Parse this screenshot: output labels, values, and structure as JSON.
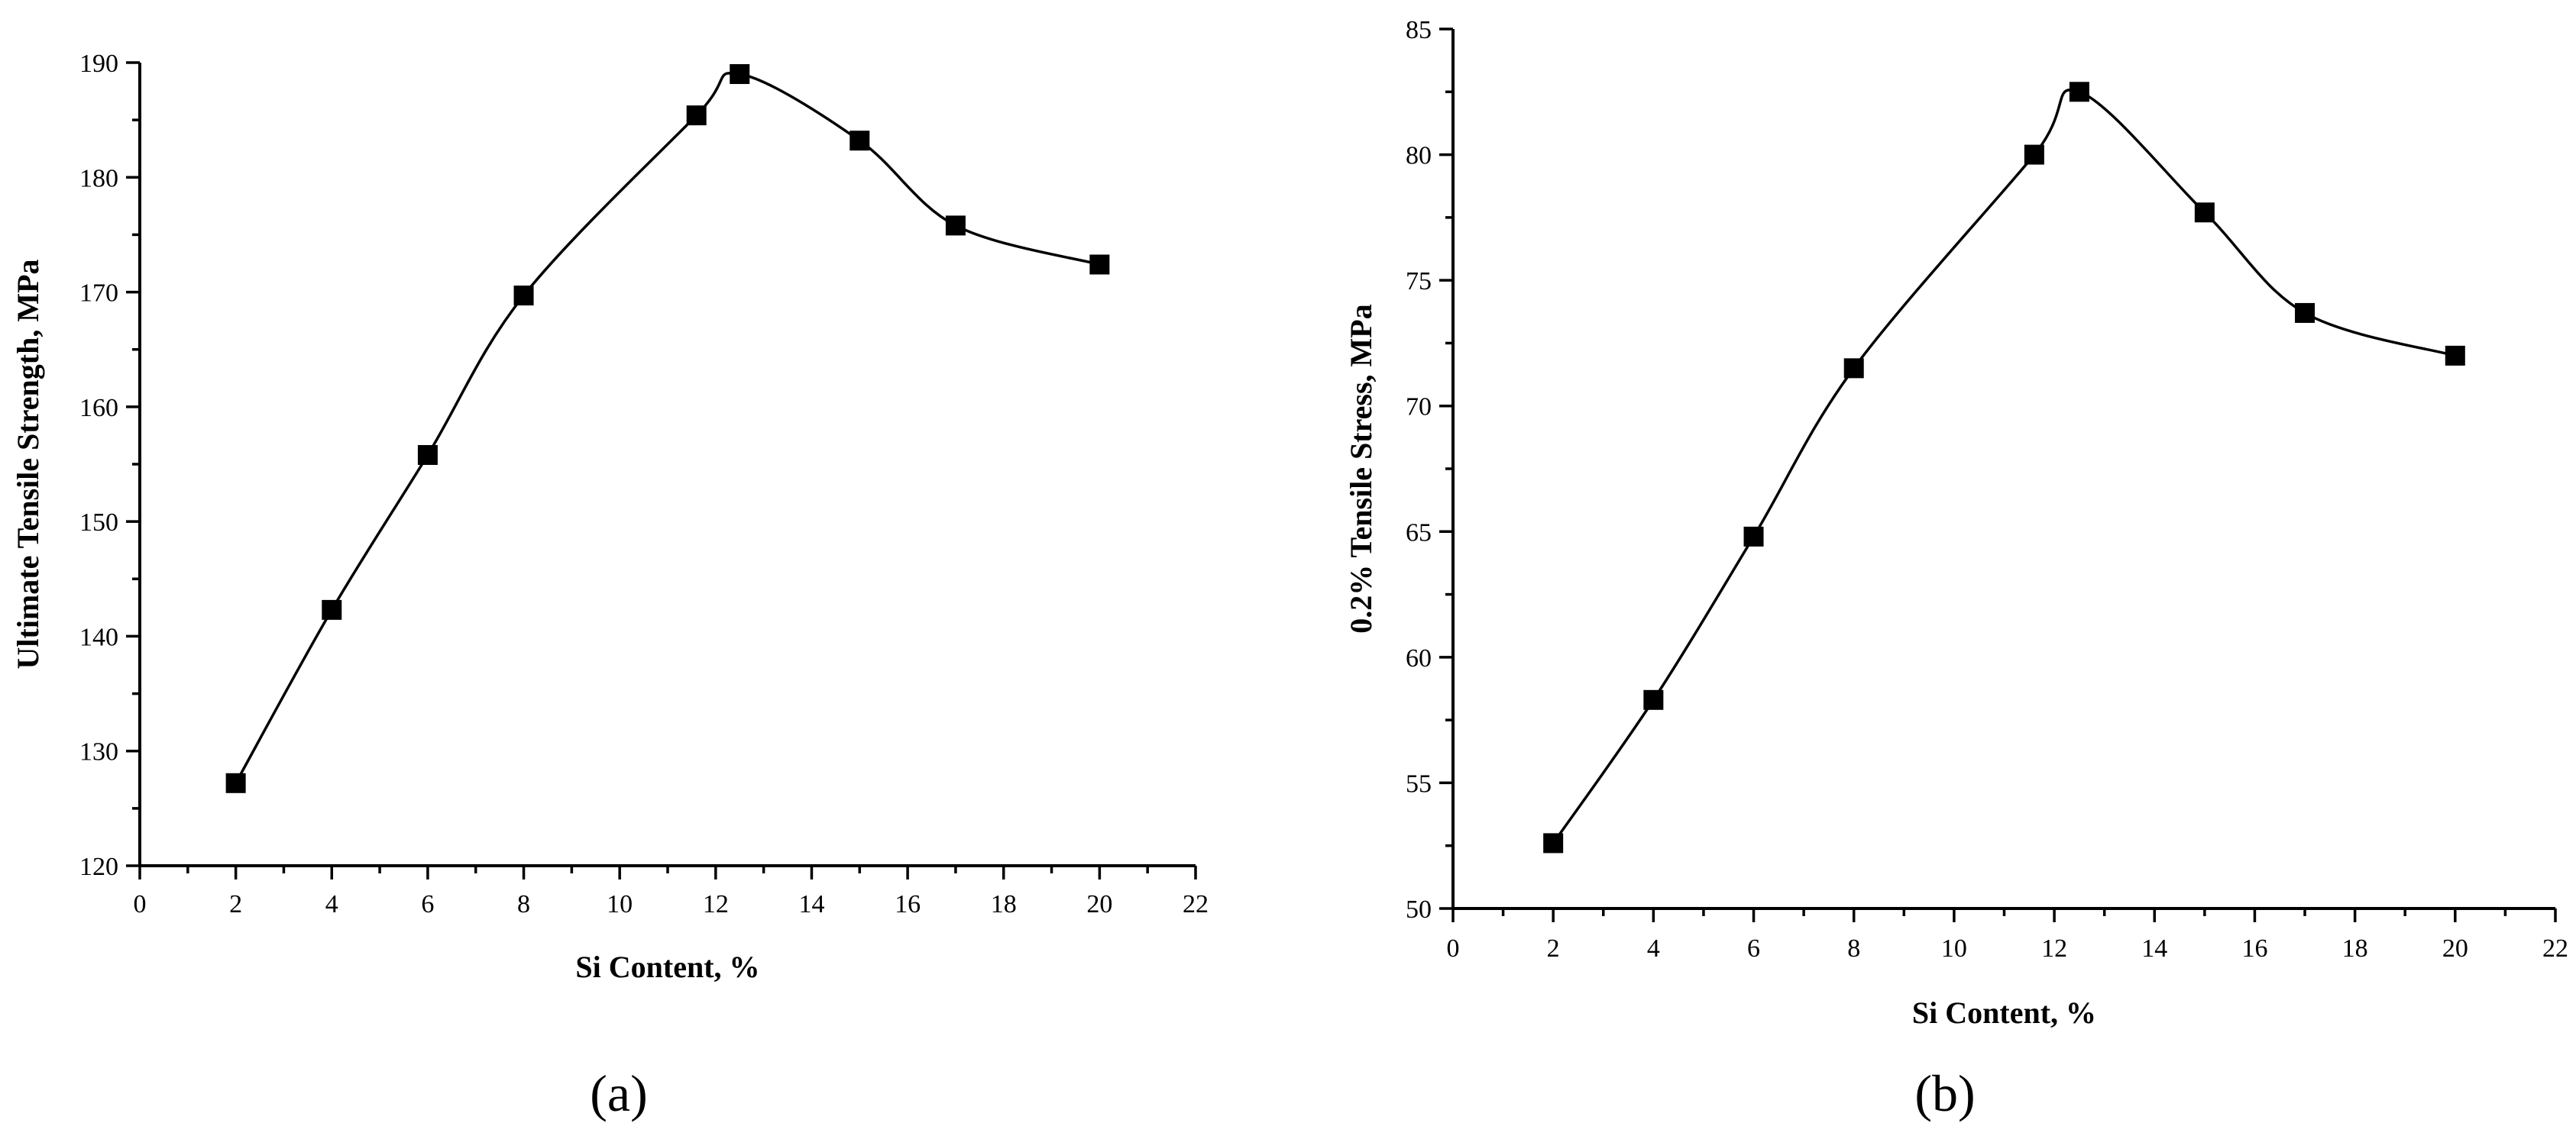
{
  "chart_data": [
    {
      "type": "line",
      "panel_label": "(a)",
      "xlabel": "Si Content, %",
      "ylabel": "Ultimate Tensile Strength, MPa",
      "xlim": [
        0,
        22
      ],
      "ylim": [
        120,
        190
      ],
      "xticks": [
        0,
        2,
        4,
        6,
        8,
        10,
        12,
        14,
        16,
        18,
        20,
        22
      ],
      "yticks": [
        120,
        130,
        140,
        150,
        160,
        170,
        180,
        190
      ],
      "marker": "square",
      "line": "smooth",
      "grid": false,
      "series": [
        {
          "x": [
            2,
            4,
            6,
            8,
            11.6,
            12.5,
            15,
            17,
            20
          ],
          "y": [
            127.2,
            142.3,
            155.8,
            169.7,
            185.4,
            189.0,
            183.2,
            175.8,
            172.4
          ]
        }
      ]
    },
    {
      "type": "line",
      "panel_label": "(b)",
      "xlabel": "Si Content, %",
      "ylabel": "0.2% Tensile Stress, MPa",
      "xlim": [
        0,
        22
      ],
      "ylim": [
        50,
        85
      ],
      "xticks": [
        0,
        2,
        4,
        6,
        8,
        10,
        12,
        14,
        16,
        18,
        20,
        22
      ],
      "yticks": [
        50,
        55,
        60,
        65,
        70,
        75,
        80,
        85
      ],
      "marker": "square",
      "line": "smooth",
      "grid": false,
      "series": [
        {
          "x": [
            2,
            4,
            6,
            8,
            11.6,
            12.5,
            15,
            17,
            20
          ],
          "y": [
            52.6,
            58.3,
            64.8,
            71.5,
            80.0,
            82.5,
            77.7,
            73.7,
            72.0
          ]
        }
      ]
    }
  ]
}
